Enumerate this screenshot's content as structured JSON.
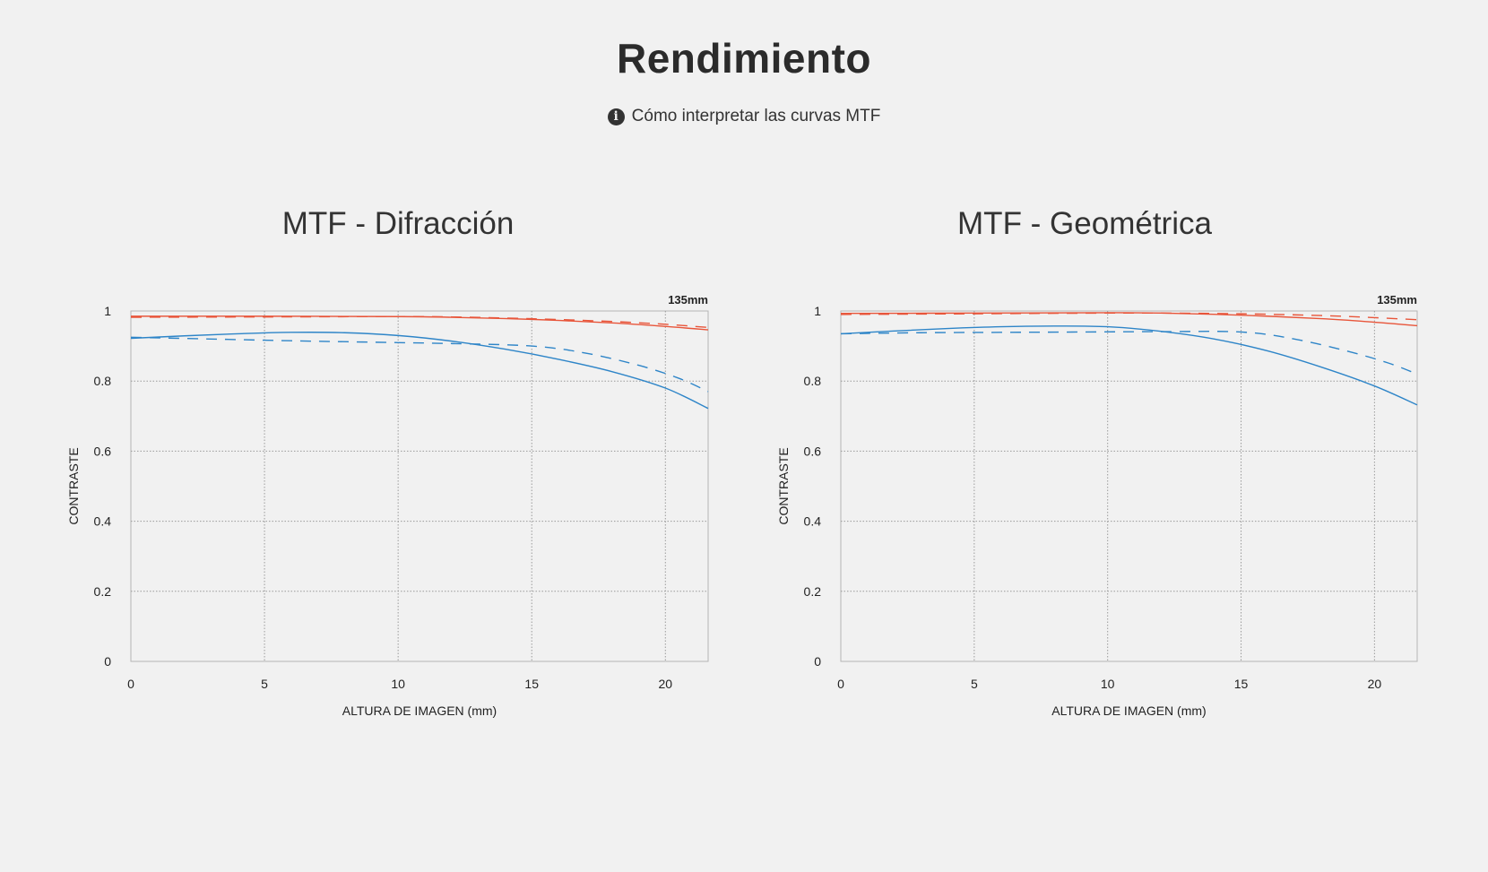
{
  "header": {
    "title": "Rendimiento",
    "link_label": "Cómo interpretar las curvas MTF",
    "link_icon": "info-icon"
  },
  "colors": {
    "red": "#e8553a",
    "blue": "#2e85c8",
    "grid": "#9a9a9a",
    "background": "#f1f1f1"
  },
  "chart_data": [
    {
      "type": "line",
      "title": "MTF - Difracción",
      "xlabel": "ALTURA DE IMAGEN (mm)",
      "ylabel": "CONTRASTE",
      "annotation": "135mm",
      "xlim": [
        0,
        21.6
      ],
      "ylim": [
        0,
        1
      ],
      "xticks": [
        0,
        5,
        10,
        15,
        20
      ],
      "yticks": [
        0,
        0.2,
        0.4,
        0.6,
        0.8,
        1
      ],
      "ytick_labels": [
        "0",
        "0.2",
        "0.4",
        "0.6",
        "0.8",
        "1"
      ],
      "grid": true,
      "series": [
        {
          "color": "red",
          "dashed": false,
          "x": [
            0,
            5,
            10,
            12,
            15,
            18,
            20,
            21.6
          ],
          "y": [
            0.985,
            0.985,
            0.984,
            0.982,
            0.976,
            0.966,
            0.956,
            0.946
          ]
        },
        {
          "color": "red",
          "dashed": true,
          "x": [
            0,
            5,
            10,
            12,
            15,
            18,
            20,
            21.6
          ],
          "y": [
            0.982,
            0.983,
            0.984,
            0.983,
            0.978,
            0.97,
            0.962,
            0.953
          ]
        },
        {
          "color": "blue",
          "dashed": false,
          "x": [
            0,
            2,
            4,
            6,
            8,
            10,
            12,
            14,
            16,
            18,
            20,
            21.6
          ],
          "y": [
            0.922,
            0.929,
            0.935,
            0.939,
            0.938,
            0.93,
            0.914,
            0.891,
            0.862,
            0.827,
            0.78,
            0.722
          ]
        },
        {
          "color": "blue",
          "dashed": true,
          "x": [
            0,
            3,
            6,
            9,
            12,
            15,
            17,
            19,
            20.5,
            21.6
          ],
          "y": [
            0.925,
            0.92,
            0.915,
            0.911,
            0.907,
            0.9,
            0.88,
            0.845,
            0.808,
            0.77
          ]
        }
      ]
    },
    {
      "type": "line",
      "title": "MTF - Geométrica",
      "xlabel": "ALTURA DE IMAGEN (mm)",
      "ylabel": "CONTRASTE",
      "annotation": "135mm",
      "xlim": [
        0,
        21.6
      ],
      "ylim": [
        0,
        1
      ],
      "xticks": [
        0,
        5,
        10,
        15,
        20
      ],
      "yticks": [
        0,
        0.2,
        0.4,
        0.6,
        0.8,
        1
      ],
      "ytick_labels": [
        "0",
        "0.2",
        "0.4",
        "0.6",
        "0.8",
        "1"
      ],
      "grid": true,
      "series": [
        {
          "color": "red",
          "dashed": false,
          "x": [
            0,
            5,
            10,
            12,
            15,
            18,
            20,
            21.6
          ],
          "y": [
            0.993,
            0.994,
            0.995,
            0.994,
            0.988,
            0.978,
            0.968,
            0.958
          ]
        },
        {
          "color": "red",
          "dashed": true,
          "x": [
            0,
            5,
            10,
            12,
            15,
            18,
            20,
            21.6
          ],
          "y": [
            0.99,
            0.992,
            0.994,
            0.994,
            0.992,
            0.987,
            0.981,
            0.975
          ]
        },
        {
          "color": "blue",
          "dashed": false,
          "x": [
            0,
            2,
            4,
            6,
            8,
            10,
            12,
            14,
            16,
            18,
            20,
            21.6
          ],
          "y": [
            0.935,
            0.943,
            0.95,
            0.955,
            0.957,
            0.955,
            0.942,
            0.92,
            0.886,
            0.84,
            0.786,
            0.732
          ]
        },
        {
          "color": "blue",
          "dashed": true,
          "x": [
            0,
            3,
            6,
            9,
            12,
            15,
            17,
            19,
            20.5,
            21.6
          ],
          "y": [
            0.935,
            0.938,
            0.939,
            0.94,
            0.941,
            0.94,
            0.92,
            0.885,
            0.852,
            0.82
          ]
        }
      ]
    }
  ]
}
